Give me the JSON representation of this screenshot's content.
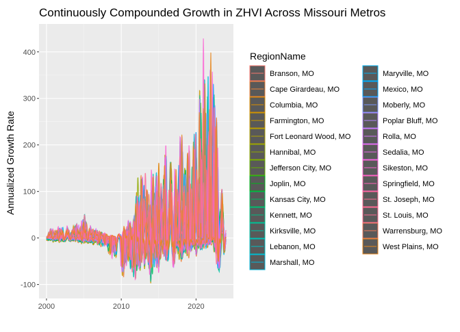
{
  "chart_data": {
    "type": "area",
    "title": "Continuously Compounded Growth in ZHVI Across Missouri Metros",
    "xlabel": "",
    "ylabel": "Annualized Growth Rate",
    "xlim": [
      1999.0,
      2025.0
    ],
    "ylim": [
      -130,
      460
    ],
    "x_ticks": [
      2000,
      2010,
      2020
    ],
    "y_ticks": [
      -100,
      0,
      100,
      200,
      300,
      400
    ],
    "grid": true,
    "legend": {
      "title": "RegionName",
      "placement": "right",
      "columns": 2
    },
    "envelope": {
      "x": [
        2000.0,
        2000.3,
        2000.6,
        2001.0,
        2001.5,
        2002.0,
        2002.5,
        2003.0,
        2003.5,
        2004.0,
        2004.5,
        2005.0,
        2005.3,
        2005.6,
        2006.0,
        2006.5,
        2007.0,
        2007.5,
        2008.0,
        2008.5,
        2009.0,
        2009.5,
        2010.0,
        2010.3,
        2010.6,
        2011.0,
        2011.5,
        2012.0,
        2012.4,
        2012.8,
        2013.2,
        2013.6,
        2014.0,
        2014.5,
        2015.0,
        2015.5,
        2016.0,
        2016.5,
        2017.0,
        2017.5,
        2018.0,
        2018.5,
        2019.0,
        2019.5,
        2020.0,
        2020.3,
        2020.6,
        2021.0,
        2021.3,
        2021.6,
        2022.0,
        2022.3,
        2022.6,
        2023.0,
        2023.3,
        2023.6,
        2024.0
      ],
      "max": [
        3,
        15,
        22,
        18,
        28,
        22,
        30,
        20,
        28,
        32,
        26,
        58,
        40,
        30,
        24,
        20,
        18,
        12,
        8,
        5,
        3,
        5,
        12,
        30,
        22,
        40,
        30,
        95,
        180,
        130,
        170,
        90,
        160,
        130,
        180,
        120,
        210,
        170,
        200,
        140,
        260,
        160,
        210,
        190,
        270,
        180,
        440,
        430,
        330,
        360,
        450,
        390,
        360,
        160,
        130,
        100,
        40
      ],
      "min": [
        -3,
        -6,
        -4,
        -8,
        -6,
        -10,
        -7,
        -8,
        -6,
        -8,
        -10,
        -12,
        -8,
        -10,
        -14,
        -12,
        -16,
        -18,
        -20,
        -40,
        -55,
        -30,
        -70,
        -98,
        -80,
        -60,
        -85,
        -95,
        -70,
        -80,
        -65,
        -75,
        -100,
        -60,
        -80,
        -50,
        -60,
        -40,
        -70,
        -35,
        -55,
        -30,
        -45,
        -25,
        -40,
        -30,
        -30,
        -20,
        -25,
        -18,
        -15,
        -10,
        -70,
        -80,
        -60,
        -75,
        -10
      ]
    },
    "series": [
      {
        "name": "Branson, MO",
        "color": "#F8766D"
      },
      {
        "name": "Cape Girardeau, MO",
        "color": "#EC8239"
      },
      {
        "name": "Columbia, MO",
        "color": "#DB8E00"
      },
      {
        "name": "Farmington, MO",
        "color": "#C79800"
      },
      {
        "name": "Fort Leonard Wood, MO",
        "color": "#AEA200"
      },
      {
        "name": "Hannibal, MO",
        "color": "#8FAA00"
      },
      {
        "name": "Jefferson City, MO",
        "color": "#64B200"
      },
      {
        "name": "Joplin, MO",
        "color": "#00B81B"
      },
      {
        "name": "Kansas City, MO",
        "color": "#00BD5C"
      },
      {
        "name": "Kennett, MO",
        "color": "#00C085"
      },
      {
        "name": "Kirksville, MO",
        "color": "#00C1A7"
      },
      {
        "name": "Lebanon, MO",
        "color": "#00BFC4"
      },
      {
        "name": "Marshall, MO",
        "color": "#00BADE"
      },
      {
        "name": "Maryville, MO",
        "color": "#00B2F3"
      },
      {
        "name": "Mexico, MO",
        "color": "#00A6FF"
      },
      {
        "name": "Moberly, MO",
        "color": "#7C96FF"
      },
      {
        "name": "Poplar Bluff, MO",
        "color": "#B385FF"
      },
      {
        "name": "Rolla, MO",
        "color": "#D874FD"
      },
      {
        "name": "Sedalia, MO",
        "color": "#EF67EB"
      },
      {
        "name": "Sikeston, MO",
        "color": "#FD61D3"
      },
      {
        "name": "Springfield, MO",
        "color": "#FF62B6"
      },
      {
        "name": "St. Joseph, MO",
        "color": "#FF6A94"
      },
      {
        "name": "St. Louis, MO",
        "color": "#FF6C91"
      },
      {
        "name": "Warrensburg, MO",
        "color": "#F37B59"
      },
      {
        "name": "West Plains, MO",
        "color": "#E7861B"
      }
    ]
  }
}
